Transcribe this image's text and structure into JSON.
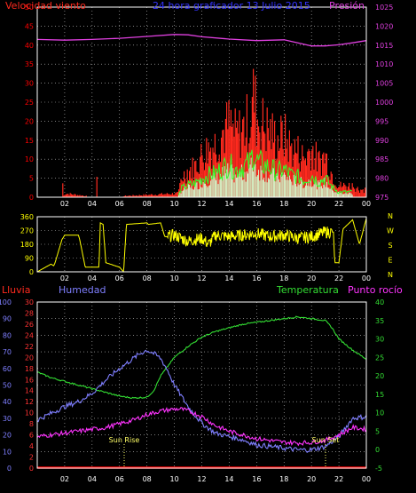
{
  "header": {
    "wind_label": "Velocidad viento",
    "title": "24 hora graficador  13 Julio 2015",
    "pressure_label": "Presión"
  },
  "colors": {
    "wind": "#ff2a1e",
    "gust": "#2fff2a",
    "wind_avg": "#d0ffd0",
    "pressure": "#e040e0",
    "direction": "#ffff00",
    "humidity": "#7f7fff",
    "temperature": "#33dd33",
    "dewpoint": "#ff33ff",
    "rain": "#ff0000",
    "grid": "#c8c8c8",
    "axis_left": "#ff0000",
    "axis_right": "#e040e0",
    "compass": "#ffff00",
    "hum_axis": "#7f7fff",
    "rain_axis": "#ff3333",
    "temp_axis": "#33dd33",
    "sun": "#ffff66"
  },
  "x_ticks": [
    "02",
    "04",
    "06",
    "08",
    "10",
    "12",
    "14",
    "16",
    "18",
    "20",
    "22",
    "00"
  ],
  "compass": [
    "N",
    "W",
    "S",
    "E",
    "N"
  ],
  "bottom_labels": {
    "rain": "Lluvia",
    "humidity": "Humedad",
    "temperature": "Temperatura",
    "dewpoint": "Punto rocío",
    "sunrise": "Sun Rise",
    "sunset": "Sun Set"
  },
  "chart_data": [
    {
      "type": "area",
      "xlabel": "",
      "ylabel": "Velocidad viento",
      "xlim": [
        0,
        24
      ],
      "ylim": [
        0,
        50
      ],
      "y_ticks": [
        0,
        5,
        10,
        15,
        20,
        25,
        30,
        35,
        40,
        45,
        50
      ],
      "y2label": "Presión",
      "y2lim": [
        975,
        1025
      ],
      "y2_ticks": [
        975,
        980,
        985,
        990,
        995,
        1000,
        1005,
        1010,
        1015,
        1020,
        1025
      ],
      "series": [
        {
          "name": "Velocidad viento",
          "x": [
            0,
            1,
            1.8,
            1.85,
            1.9,
            2,
            4.3,
            4.35,
            4.4,
            4.5,
            10.3,
            10.5,
            11,
            11.5,
            12,
            12.5,
            13,
            13.5,
            14,
            14.5,
            15,
            15.5,
            15.8,
            16,
            16.5,
            17,
            17.5,
            18,
            18.5,
            19,
            19.5,
            20,
            20.5,
            21,
            21.5,
            22,
            22.5,
            23,
            23.5,
            24
          ],
          "y": [
            0,
            0,
            0,
            5,
            0,
            1,
            0,
            4,
            0,
            0,
            1,
            5,
            7,
            8,
            11,
            13,
            14,
            17,
            19,
            16,
            18,
            20,
            27,
            21,
            19,
            17,
            15,
            16,
            13,
            12,
            10,
            13,
            9,
            11,
            6,
            3,
            3,
            3,
            2,
            2
          ]
        },
        {
          "name": "Presión",
          "x": [
            0,
            2,
            4,
            6,
            8,
            10,
            11,
            12,
            14,
            16,
            18,
            19,
            20,
            21,
            22,
            23,
            24
          ],
          "y": [
            1016.5,
            1016.3,
            1016.5,
            1016.8,
            1017.3,
            1017.8,
            1017.7,
            1017.2,
            1016.6,
            1016.2,
            1016.4,
            1015.6,
            1014.8,
            1014.8,
            1015.1,
            1015.6,
            1016.2
          ]
        }
      ]
    },
    {
      "type": "scatter",
      "xlabel": "",
      "ylabel": "",
      "xlim": [
        0,
        24
      ],
      "ylim": [
        0,
        360
      ],
      "y_ticks": [
        0,
        90,
        180,
        270,
        360
      ],
      "series": [
        {
          "name": "",
          "x": [
            0,
            1,
            1.2,
            1.3,
            1.8,
            2,
            3,
            3.1,
            3.5,
            4.5,
            4.6,
            4.8,
            5,
            6,
            6.3,
            6.5,
            8,
            8.1,
            9,
            9.3,
            9.5,
            10,
            11,
            12,
            12.5,
            13,
            14,
            15,
            16,
            17,
            18,
            19,
            20,
            21,
            21.6,
            21.7,
            22,
            22.3,
            23,
            23.5,
            24
          ],
          "y": [
            0,
            50,
            40,
            60,
            210,
            240,
            240,
            210,
            30,
            30,
            320,
            310,
            60,
            30,
            0,
            310,
            320,
            310,
            320,
            230,
            230,
            240,
            200,
            220,
            180,
            240,
            230,
            240,
            250,
            230,
            240,
            220,
            230,
            260,
            260,
            60,
            60,
            280,
            340,
            180,
            350
          ]
        }
      ]
    },
    {
      "type": "line",
      "xlabel": "",
      "ylabel": "Humedad",
      "xlim": [
        0,
        24
      ],
      "y_ticks_hum": [
        0,
        10,
        20,
        30,
        40,
        50,
        60,
        70,
        80,
        90,
        100
      ],
      "y_ticks_rain": [
        0,
        2,
        4,
        6,
        8,
        10,
        12,
        14,
        16,
        18,
        20,
        22,
        24,
        26,
        28,
        30
      ],
      "y2label": "Temperatura",
      "y2lim": [
        -5,
        40
      ],
      "y2_ticks": [
        -5,
        0,
        5,
        10,
        15,
        20,
        25,
        30,
        35,
        40
      ],
      "series": [
        {
          "name": "Humedad",
          "x": [
            0,
            1,
            2,
            3,
            4,
            5,
            6,
            7,
            7.5,
            8,
            8.5,
            9,
            9.5,
            10,
            11,
            12,
            13,
            14,
            15,
            16,
            17,
            18,
            19,
            20,
            21,
            22,
            23,
            24
          ],
          "y": [
            29,
            33,
            37,
            40,
            45,
            53,
            60,
            66,
            69,
            71,
            69,
            66,
            59,
            50,
            37,
            27,
            21,
            19,
            17,
            14,
            13,
            12,
            11,
            11,
            13,
            19,
            30,
            31
          ]
        },
        {
          "name": "Temperatura",
          "x": [
            0,
            1,
            2,
            3,
            4,
            5,
            6,
            7,
            8,
            8.5,
            9,
            10,
            11,
            12,
            13,
            14,
            15,
            16,
            17,
            18,
            19,
            20,
            21,
            21.5,
            22,
            23,
            24
          ],
          "y": [
            21,
            19.5,
            18.5,
            17.5,
            16.5,
            15.5,
            14.5,
            14,
            14.2,
            16,
            20,
            25,
            28,
            30.5,
            32,
            33,
            34,
            34.5,
            35,
            35.5,
            36,
            35.5,
            35,
            33,
            30,
            27,
            24.5
          ]
        },
        {
          "name": "Punto rocío",
          "x": [
            0,
            1,
            2,
            3,
            4,
            5,
            6,
            7,
            8,
            9,
            10,
            10.5,
            11,
            12,
            13,
            14,
            15,
            16,
            17,
            18,
            19,
            20,
            21,
            22,
            23,
            24
          ],
          "y": [
            3.5,
            4,
            4.5,
            5,
            5.5,
            6,
            7,
            8,
            9.5,
            10.5,
            11,
            11,
            10.5,
            9,
            6.5,
            5,
            4,
            3,
            2.5,
            2,
            1.8,
            2,
            2.5,
            4,
            6,
            5.5
          ]
        },
        {
          "name": "Lluvia",
          "x": [
            0,
            24
          ],
          "y": [
            0,
            0
          ]
        }
      ]
    }
  ]
}
